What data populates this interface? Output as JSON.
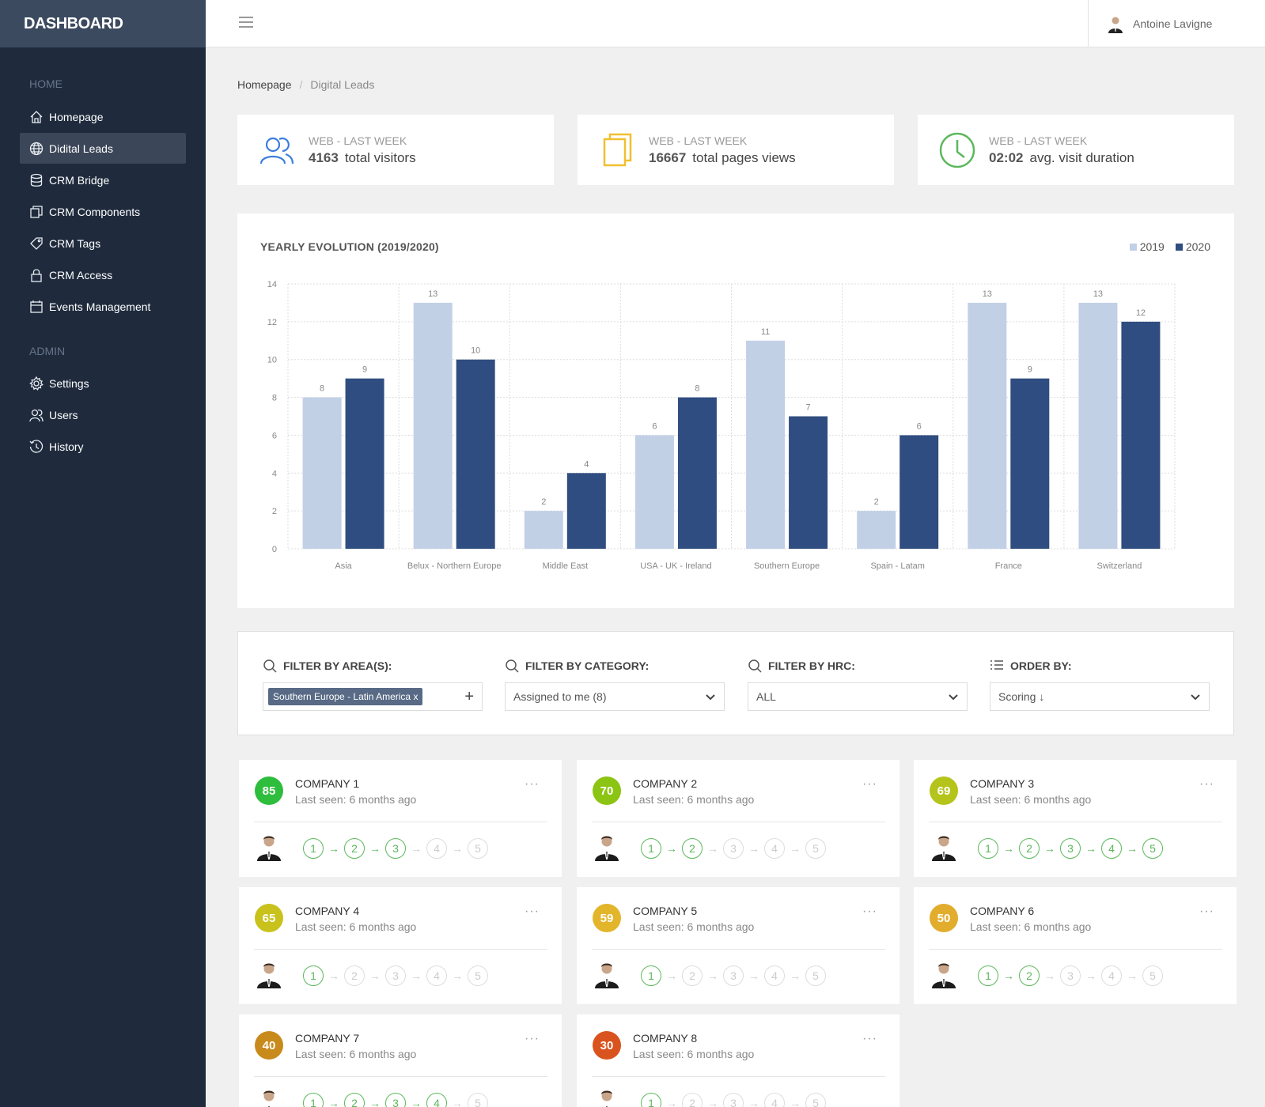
{
  "brand": "DASHBOARD",
  "user": {
    "name": "Antoine Lavigne"
  },
  "sidebar": {
    "home_section": "HOME",
    "home_items": [
      {
        "label": "Homepage",
        "icon": "home-icon"
      },
      {
        "label": "Didital Leads",
        "icon": "globe-icon",
        "active": true
      },
      {
        "label": "CRM Bridge",
        "icon": "database-icon"
      },
      {
        "label": "CRM Components",
        "icon": "copy-icon"
      },
      {
        "label": "CRM Tags",
        "icon": "tag-icon"
      },
      {
        "label": "CRM Access",
        "icon": "lock-icon"
      },
      {
        "label": "Events Management",
        "icon": "calendar-icon"
      }
    ],
    "admin_section": "ADMIN",
    "admin_items": [
      {
        "label": "Settings",
        "icon": "gear-icon"
      },
      {
        "label": "Users",
        "icon": "users-icon"
      },
      {
        "label": "History",
        "icon": "history-icon"
      }
    ]
  },
  "breadcrumb": {
    "home": "Homepage",
    "current": "Digital Leads"
  },
  "stats": [
    {
      "label": "WEB - LAST WEEK",
      "value": "4163",
      "suffix": "total visitors",
      "icon": "users-icon",
      "color": "#3b7ddd"
    },
    {
      "label": "WEB - LAST WEEK",
      "value": "16667",
      "suffix": "total pages views",
      "icon": "pages-icon",
      "color": "#f0c030"
    },
    {
      "label": "WEB - LAST WEEK",
      "value": "02:02",
      "suffix": "avg. visit duration",
      "icon": "clock-icon",
      "color": "#5cb85c"
    }
  ],
  "chart_data": {
    "type": "bar",
    "title": "YEARLY EVOLUTION (2019/2020)",
    "categories": [
      "Asia",
      "Belux - Northern Europe",
      "Middle East",
      "USA - UK - Ireland",
      "Southern Europe",
      "Spain - Latam",
      "France",
      "Switzerland"
    ],
    "series": [
      {
        "name": "2019",
        "color": "#c2d0e6",
        "values": [
          8,
          13,
          2,
          6,
          11,
          2,
          13,
          13
        ]
      },
      {
        "name": "2020",
        "color": "#2f4d80",
        "values": [
          9,
          10,
          4,
          8,
          7,
          6,
          9,
          12
        ]
      }
    ],
    "ylim": [
      0,
      14
    ],
    "yticks": [
      0,
      2,
      4,
      6,
      8,
      10,
      12,
      14
    ],
    "grid": true,
    "legend_position": "top-right"
  },
  "filters": {
    "area": {
      "label": "FILTER BY AREA(S):",
      "tag": "Southern Europe - Latin America",
      "tag_remove": "x",
      "add": "+"
    },
    "category": {
      "label": "FILTER BY CATEGORY:",
      "value": "Assigned to me (8)"
    },
    "hrc": {
      "label": "FILTER BY HRC:",
      "value": "ALL"
    },
    "order": {
      "label": "ORDER BY:",
      "value": "Scoring ↓"
    }
  },
  "companies": [
    {
      "name": "COMPANY 1",
      "seen": "Last seen: 6 months ago",
      "score": "85",
      "color": "#2ebd3c",
      "steps_done": 3
    },
    {
      "name": "COMPANY 2",
      "seen": "Last seen: 6 months ago",
      "score": "70",
      "color": "#8cc413",
      "steps_done": 2
    },
    {
      "name": "COMPANY 3",
      "seen": "Last seen: 6 months ago",
      "score": "69",
      "color": "#b4c41a",
      "steps_done": 5
    },
    {
      "name": "COMPANY 4",
      "seen": "Last seen: 6 months ago",
      "score": "65",
      "color": "#c9c21c",
      "steps_done": 1
    },
    {
      "name": "COMPANY 5",
      "seen": "Last seen: 6 months ago",
      "score": "59",
      "color": "#e3b52b",
      "steps_done": 1
    },
    {
      "name": "COMPANY 6",
      "seen": "Last seen: 6 months ago",
      "score": "50",
      "color": "#e2ad2d",
      "steps_done": 2
    },
    {
      "name": "COMPANY 7",
      "seen": "Last seen: 6 months ago",
      "score": "40",
      "color": "#c98a1c",
      "steps_done": 4
    },
    {
      "name": "COMPANY 8",
      "seen": "Last seen: 6 months ago",
      "score": "30",
      "color": "#d9531e",
      "steps_done": 1
    }
  ],
  "menu_dots": "···",
  "step_labels": [
    "1",
    "2",
    "3",
    "4",
    "5"
  ]
}
